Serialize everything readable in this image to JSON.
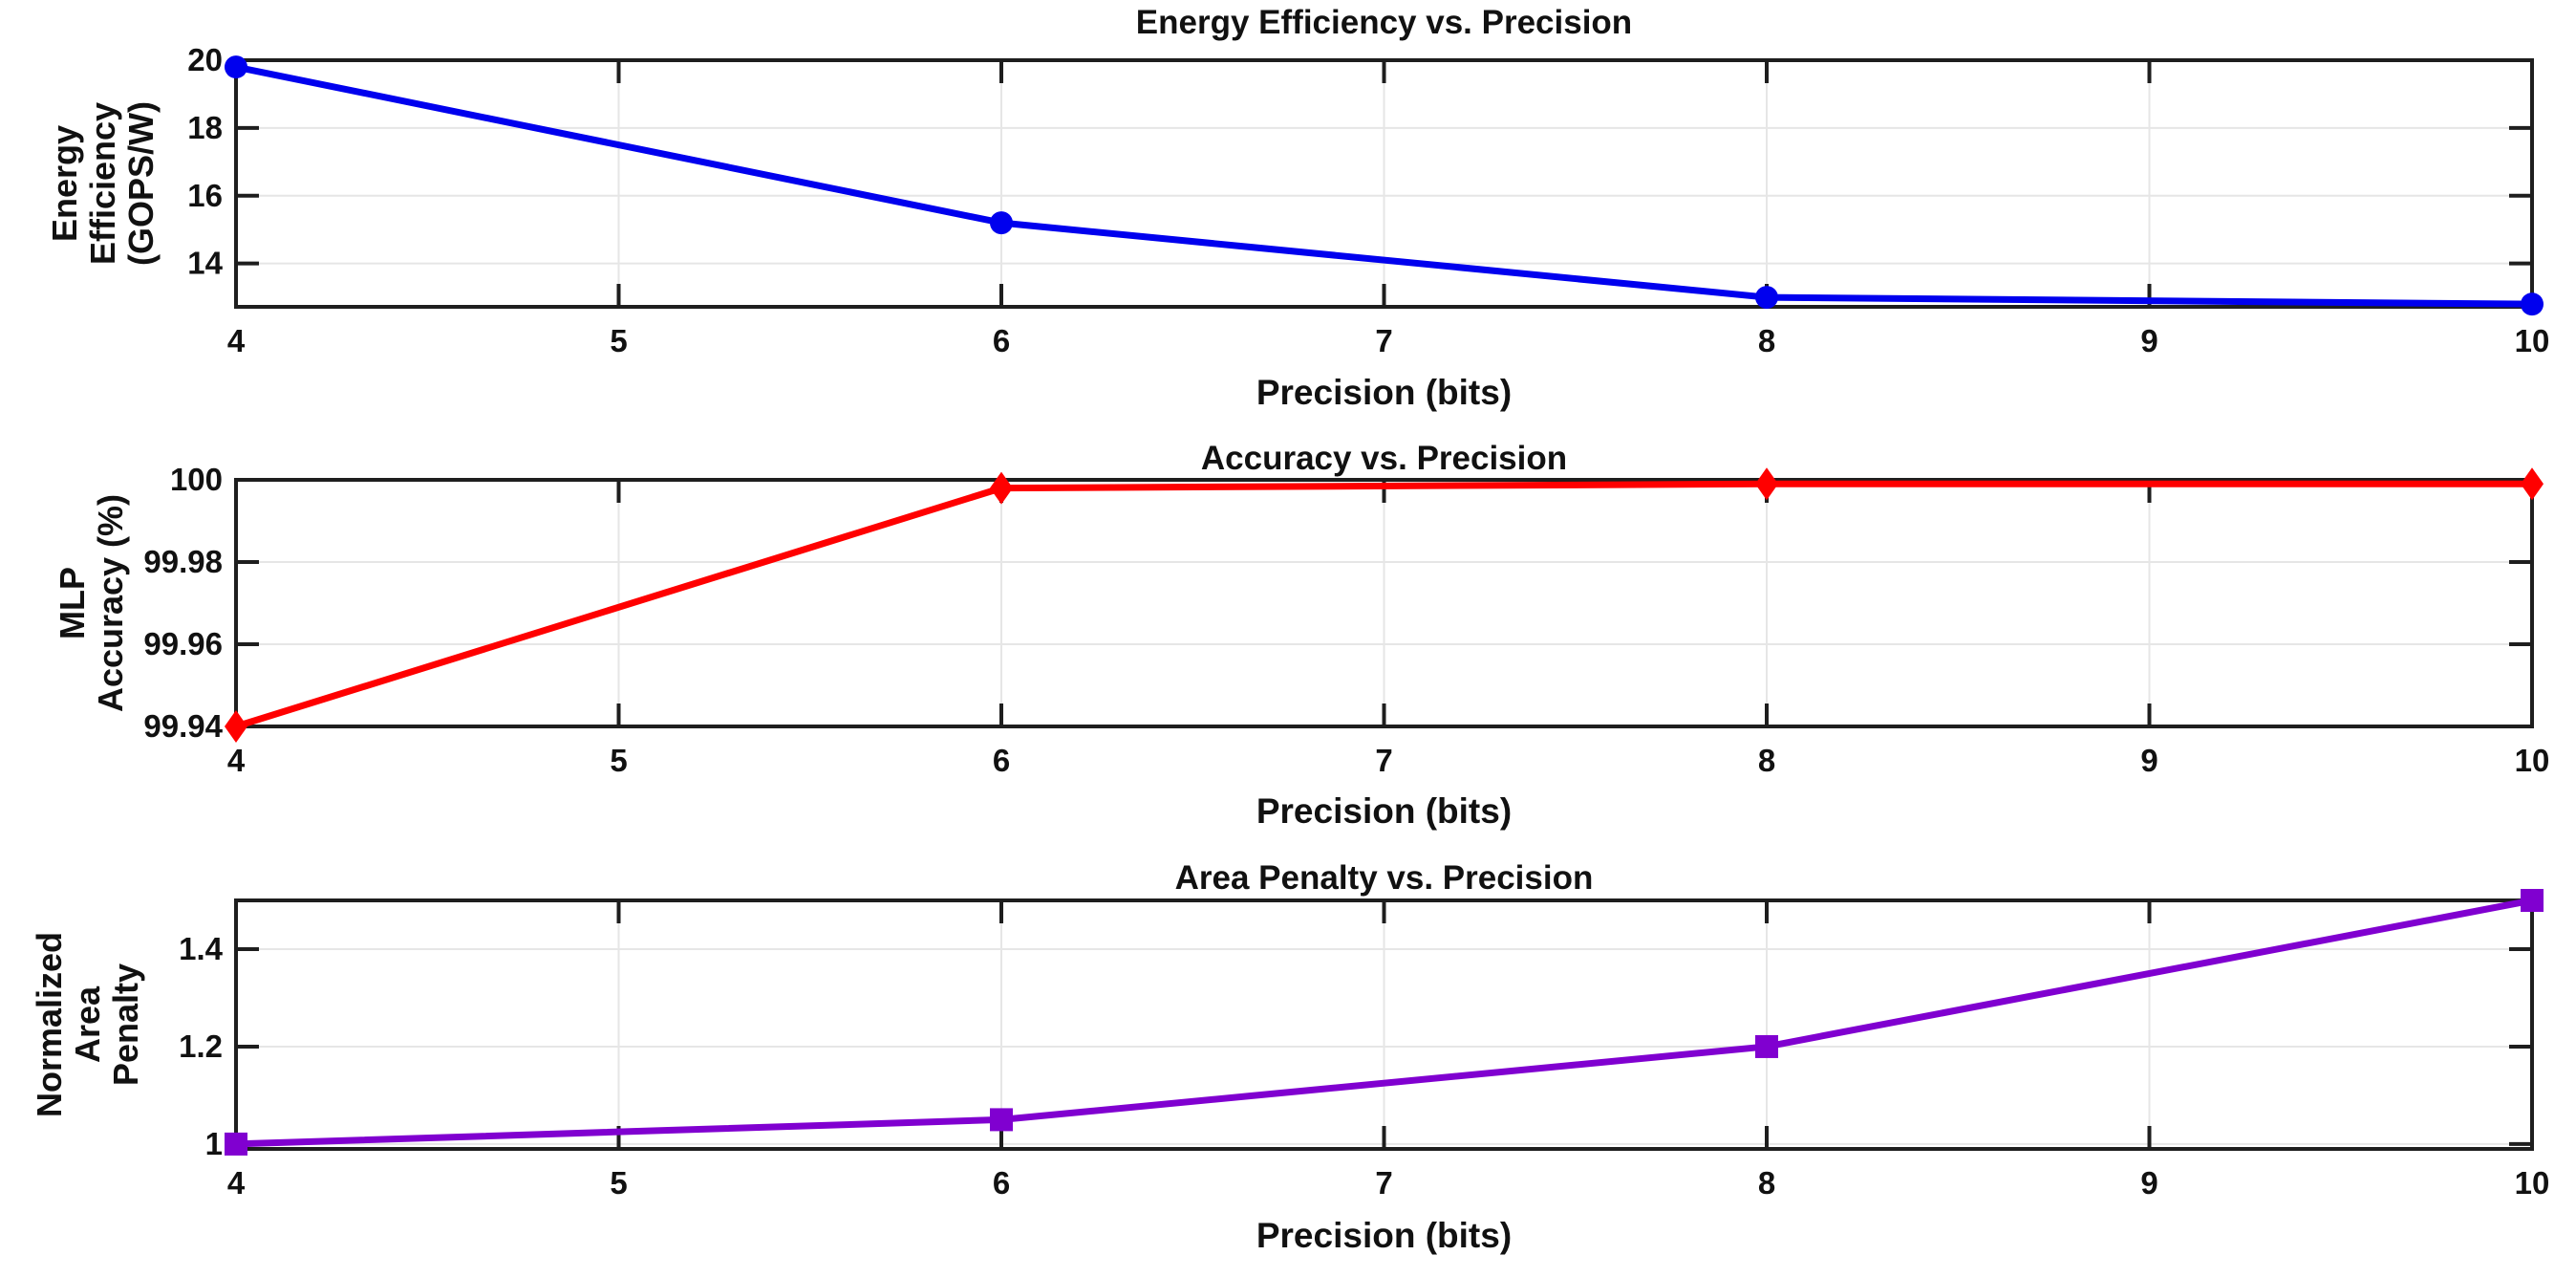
{
  "figure": {
    "background": "#ffffff"
  },
  "style": {
    "axis_color": "#1e1e1e",
    "grid_color": "#e6e6e6",
    "text_color": "#111111"
  },
  "chart_data": [
    {
      "type": "line",
      "title": "Energy Efficiency vs. Precision",
      "xlabel": "Precision (bits)",
      "ylabel_lines": [
        "Energy",
        "Efficiency",
        "(GOPS/W)"
      ],
      "x": [
        4,
        6,
        8,
        10
      ],
      "y": [
        19.8,
        15.2,
        13.0,
        12.8
      ],
      "series_color": "#0000EE",
      "marker": "circle",
      "xlim": [
        4,
        10
      ],
      "ylim": [
        12.72,
        20
      ],
      "xtick_values": [
        4,
        5,
        6,
        7,
        8,
        9,
        10
      ],
      "xtick_labels": [
        "4",
        "5",
        "6",
        "7",
        "8",
        "9",
        "10"
      ],
      "ytick_values": [
        14,
        16,
        18,
        20
      ],
      "ytick_labels": [
        "14",
        "16",
        "18",
        "20"
      ],
      "grid": true,
      "legend_position": "none"
    },
    {
      "type": "line",
      "title": "Accuracy vs. Precision",
      "xlabel": "Precision (bits)",
      "ylabel_lines": [
        "MLP",
        "Accuracy (%)"
      ],
      "x": [
        4,
        6,
        8,
        10
      ],
      "y": [
        99.94,
        99.998,
        99.999,
        99.999
      ],
      "series_color": "#FF0000",
      "marker": "diamond",
      "xlim": [
        4,
        10
      ],
      "ylim": [
        99.94,
        100
      ],
      "xtick_values": [
        4,
        5,
        6,
        7,
        8,
        9,
        10
      ],
      "xtick_labels": [
        "4",
        "5",
        "6",
        "7",
        "8",
        "9",
        "10"
      ],
      "ytick_values": [
        99.94,
        99.96,
        99.98,
        100
      ],
      "ytick_labels": [
        "99.94",
        "99.96",
        "99.98",
        "100"
      ],
      "grid": true,
      "legend_position": "none"
    },
    {
      "type": "line",
      "title": "Area Penalty vs. Precision",
      "xlabel": "Precision (bits)",
      "ylabel_lines": [
        "Normalized",
        "Area",
        "Penalty"
      ],
      "x": [
        4,
        6,
        8,
        10
      ],
      "y": [
        1.0,
        1.05,
        1.2,
        1.5
      ],
      "series_color": "#8000D0",
      "marker": "square",
      "xlim": [
        4,
        10
      ],
      "ylim": [
        0.99,
        1.5
      ],
      "xtick_values": [
        4,
        5,
        6,
        7,
        8,
        9,
        10
      ],
      "xtick_labels": [
        "4",
        "5",
        "6",
        "7",
        "8",
        "9",
        "10"
      ],
      "ytick_values": [
        1,
        1.2,
        1.4
      ],
      "ytick_labels": [
        "1",
        "1.2",
        "1.4"
      ],
      "grid": true,
      "legend_position": "none"
    }
  ]
}
